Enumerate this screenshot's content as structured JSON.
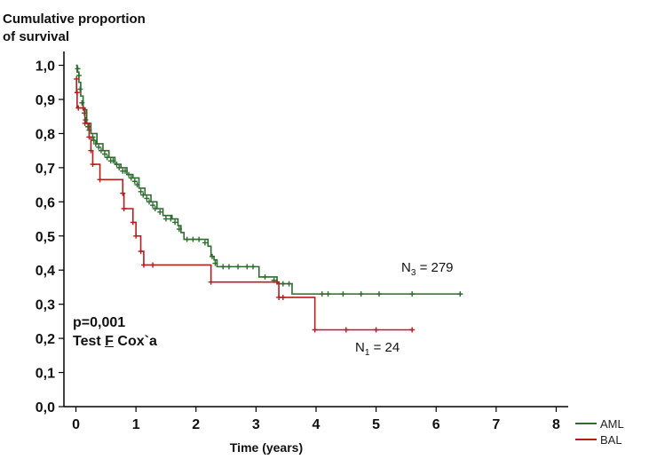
{
  "chart_data": {
    "type": "line",
    "ylabel_line1": "Cumulative proportion",
    "ylabel_line2": "of survival",
    "xlabel": "Time (years)",
    "xlim": [
      -0.2,
      8.2
    ],
    "ylim": [
      0.0,
      1.03
    ],
    "x_ticks": [
      "0",
      "1",
      "2",
      "3",
      "4",
      "5",
      "6",
      "7",
      "8"
    ],
    "y_ticks": [
      "0,0",
      "0,1",
      "0,2",
      "0,3",
      "0,4",
      "0,5",
      "0,6",
      "0,7",
      "0,8",
      "0,9",
      "1,0"
    ],
    "annotation_p": "p=0,001",
    "annotation_test_pre": "Test ",
    "annotation_test_f": "F",
    "annotation_test_post": " Cox`a",
    "series": [
      {
        "name": "AML",
        "color": "#2e6b2e",
        "n_label_main": "N",
        "n_label_sub": "3",
        "n_label_rest": " = 279",
        "steps": [
          [
            0,
            1.0
          ],
          [
            0.02,
            0.98
          ],
          [
            0.05,
            0.95
          ],
          [
            0.08,
            0.91
          ],
          [
            0.12,
            0.87
          ],
          [
            0.18,
            0.83
          ],
          [
            0.25,
            0.8
          ],
          [
            0.35,
            0.77
          ],
          [
            0.45,
            0.75
          ],
          [
            0.55,
            0.73
          ],
          [
            0.65,
            0.71
          ],
          [
            0.75,
            0.7
          ],
          [
            0.85,
            0.68
          ],
          [
            0.95,
            0.67
          ],
          [
            1.05,
            0.64
          ],
          [
            1.15,
            0.62
          ],
          [
            1.25,
            0.6
          ],
          [
            1.35,
            0.58
          ],
          [
            1.45,
            0.56
          ],
          [
            1.6,
            0.55
          ],
          [
            1.7,
            0.53
          ],
          [
            1.75,
            0.51
          ],
          [
            1.8,
            0.49
          ],
          [
            2.1,
            0.49
          ],
          [
            2.2,
            0.47
          ],
          [
            2.25,
            0.44
          ],
          [
            2.3,
            0.43
          ],
          [
            2.35,
            0.41
          ],
          [
            3.0,
            0.41
          ],
          [
            3.05,
            0.38
          ],
          [
            3.25,
            0.38
          ],
          [
            3.35,
            0.36
          ],
          [
            3.55,
            0.36
          ],
          [
            3.6,
            0.33
          ],
          [
            6.4,
            0.33
          ]
        ],
        "censored": [
          [
            0.03,
            0.99
          ],
          [
            0.05,
            0.97
          ],
          [
            0.07,
            0.93
          ],
          [
            0.1,
            0.89
          ],
          [
            0.14,
            0.86
          ],
          [
            0.16,
            0.84
          ],
          [
            0.2,
            0.82
          ],
          [
            0.22,
            0.81
          ],
          [
            0.28,
            0.79
          ],
          [
            0.3,
            0.78
          ],
          [
            0.33,
            0.77
          ],
          [
            0.38,
            0.76
          ],
          [
            0.42,
            0.75
          ],
          [
            0.48,
            0.74
          ],
          [
            0.52,
            0.73
          ],
          [
            0.58,
            0.72
          ],
          [
            0.62,
            0.72
          ],
          [
            0.68,
            0.71
          ],
          [
            0.72,
            0.7
          ],
          [
            0.78,
            0.69
          ],
          [
            0.82,
            0.69
          ],
          [
            0.88,
            0.68
          ],
          [
            0.92,
            0.67
          ],
          [
            0.98,
            0.66
          ],
          [
            1.02,
            0.65
          ],
          [
            1.08,
            0.63
          ],
          [
            1.12,
            0.62
          ],
          [
            1.18,
            0.61
          ],
          [
            1.22,
            0.6
          ],
          [
            1.28,
            0.59
          ],
          [
            1.32,
            0.58
          ],
          [
            1.4,
            0.57
          ],
          [
            1.5,
            0.55
          ],
          [
            1.58,
            0.55
          ],
          [
            1.65,
            0.54
          ],
          [
            1.72,
            0.52
          ],
          [
            1.85,
            0.49
          ],
          [
            1.95,
            0.49
          ],
          [
            2.05,
            0.49
          ],
          [
            2.15,
            0.48
          ],
          [
            2.27,
            0.44
          ],
          [
            2.32,
            0.42
          ],
          [
            2.45,
            0.41
          ],
          [
            2.55,
            0.41
          ],
          [
            2.7,
            0.41
          ],
          [
            2.85,
            0.41
          ],
          [
            2.95,
            0.41
          ],
          [
            3.15,
            0.38
          ],
          [
            3.3,
            0.37
          ],
          [
            3.45,
            0.36
          ],
          [
            3.55,
            0.36
          ],
          [
            4.1,
            0.33
          ],
          [
            4.2,
            0.33
          ],
          [
            4.45,
            0.33
          ],
          [
            4.75,
            0.33
          ],
          [
            5.05,
            0.33
          ],
          [
            5.6,
            0.33
          ],
          [
            6.4,
            0.33
          ]
        ]
      },
      {
        "name": "BAL",
        "color": "#b81c1c",
        "n_label_main": "N",
        "n_label_sub": "1",
        "n_label_rest": " = 24",
        "steps": [
          [
            0,
            0.96
          ],
          [
            0.01,
            0.92
          ],
          [
            0.02,
            0.875
          ],
          [
            0.12,
            0.875
          ],
          [
            0.15,
            0.83
          ],
          [
            0.22,
            0.79
          ],
          [
            0.25,
            0.75
          ],
          [
            0.28,
            0.71
          ],
          [
            0.38,
            0.71
          ],
          [
            0.4,
            0.665
          ],
          [
            0.75,
            0.665
          ],
          [
            0.78,
            0.625
          ],
          [
            0.8,
            0.58
          ],
          [
            0.9,
            0.58
          ],
          [
            0.95,
            0.54
          ],
          [
            1.0,
            0.5
          ],
          [
            1.05,
            0.5
          ],
          [
            1.08,
            0.455
          ],
          [
            1.13,
            0.415
          ],
          [
            2.2,
            0.415
          ],
          [
            2.25,
            0.365
          ],
          [
            3.35,
            0.365
          ],
          [
            3.38,
            0.32
          ],
          [
            3.95,
            0.32
          ],
          [
            3.98,
            0.225
          ],
          [
            5.6,
            0.225
          ]
        ],
        "censored": [
          [
            0.01,
            0.96
          ],
          [
            0.02,
            0.92
          ],
          [
            0.04,
            0.875
          ],
          [
            0.12,
            0.875
          ],
          [
            0.15,
            0.83
          ],
          [
            0.22,
            0.79
          ],
          [
            0.25,
            0.75
          ],
          [
            0.28,
            0.71
          ],
          [
            0.4,
            0.665
          ],
          [
            0.78,
            0.625
          ],
          [
            0.8,
            0.58
          ],
          [
            0.95,
            0.54
          ],
          [
            1.0,
            0.5
          ],
          [
            1.08,
            0.455
          ],
          [
            1.13,
            0.415
          ],
          [
            1.28,
            0.415
          ],
          [
            2.25,
            0.365
          ],
          [
            3.35,
            0.365
          ],
          [
            3.38,
            0.32
          ],
          [
            3.45,
            0.32
          ],
          [
            3.98,
            0.225
          ],
          [
            4.5,
            0.225
          ],
          [
            5.0,
            0.225
          ],
          [
            5.6,
            0.225
          ]
        ]
      }
    ]
  }
}
